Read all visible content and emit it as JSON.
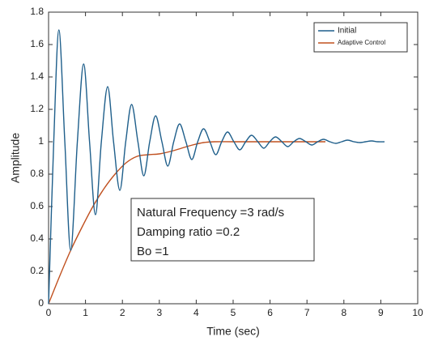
{
  "chart_data": {
    "type": "line",
    "x_label": "Time (sec)",
    "y_label": "Amplitude",
    "xlim": [
      0,
      10
    ],
    "xticks": [
      0,
      1,
      2,
      3,
      4,
      5,
      6,
      7,
      8,
      9,
      10
    ],
    "ylim": [
      0,
      1.8
    ],
    "yticks": [
      0,
      0.2,
      0.4,
      0.6,
      0.8,
      1,
      1.2,
      1.4,
      1.6,
      1.8
    ],
    "grid": false,
    "legend": "northeast",
    "series": [
      {
        "name": "Initial",
        "color": "#1f5f8b",
        "x": [
          0,
          0.14,
          0.28,
          0.44,
          0.6,
          0.78,
          0.95,
          1.11,
          1.27,
          1.43,
          1.6,
          1.76,
          1.93,
          2.09,
          2.25,
          2.42,
          2.58,
          2.74,
          2.9,
          3.07,
          3.23,
          3.39,
          3.55,
          3.72,
          3.88,
          4.04,
          4.2,
          4.37,
          4.53,
          4.69,
          4.85,
          5.02,
          5.18,
          5.34,
          5.5,
          5.67,
          5.83,
          5.99,
          6.15,
          6.32,
          6.48,
          6.64,
          6.8,
          6.97,
          7.13,
          7.29,
          7.45,
          7.62,
          7.78,
          7.94,
          8.1,
          8.27,
          8.43,
          8.59,
          8.75,
          8.92,
          9.1
        ],
        "values": [
          0,
          1.0,
          1.69,
          1.0,
          0.33,
          1.0,
          1.48,
          1.0,
          0.55,
          1.0,
          1.34,
          1.0,
          0.7,
          1.0,
          1.23,
          1.0,
          0.79,
          1.0,
          1.16,
          1.0,
          0.85,
          1.0,
          1.11,
          1.0,
          0.89,
          1.0,
          1.08,
          1.0,
          0.92,
          1.0,
          1.06,
          1.0,
          0.95,
          1.0,
          1.04,
          1.0,
          0.96,
          1.0,
          1.03,
          1.0,
          0.97,
          1.0,
          1.02,
          1.0,
          0.98,
          1.0,
          1.015,
          1.0,
          0.99,
          1.0,
          1.01,
          1.0,
          0.995,
          1.0,
          1.005,
          1.0,
          1.0
        ]
      },
      {
        "name": "Adaptive Control",
        "color": "#c0501f",
        "x": [
          0,
          0.3,
          0.6,
          0.9,
          1.2,
          1.5,
          1.8,
          2.1,
          2.4,
          2.7,
          3.0,
          3.3,
          3.6,
          3.9,
          4.2,
          4.5,
          5.0,
          5.5,
          6.0,
          6.5,
          7.0,
          7.5
        ],
        "values": [
          0,
          0.17,
          0.33,
          0.47,
          0.6,
          0.71,
          0.8,
          0.87,
          0.91,
          0.92,
          0.925,
          0.94,
          0.96,
          0.98,
          0.995,
          1.0,
          1.0,
          1.0,
          1.0,
          1.0,
          1.0,
          1.0
        ]
      }
    ],
    "annotations": [
      "Natural Frequency =3 rad/s",
      "Damping ratio =0.2",
      "Bo =1"
    ]
  }
}
